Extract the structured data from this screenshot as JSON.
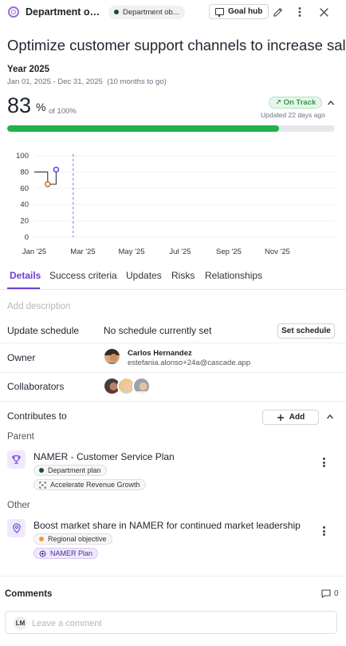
{
  "header": {
    "title": "Department obj...",
    "pill_label": "Department ob...",
    "goal_hub_label": "Goal hub",
    "icons": [
      "target-icon",
      "goal-hub-icon",
      "pencil-icon",
      "more-vertical-icon",
      "close-icon"
    ]
  },
  "objective": {
    "title": "Optimize customer support channels to increase sales",
    "year_label": "Year 2025",
    "date_range": "Jan 01, 2025 - Dec 31, 2025",
    "months_left": "(10 months to go)",
    "progress_value": "83",
    "progress_unit": "%",
    "progress_of": "of 100%",
    "progress_fraction": 0.83,
    "status": "↗ On Track",
    "updated": "Updated 22 days ago",
    "colors": {
      "accent": "#6d3fd6",
      "progress": "#21b04b",
      "status": "#2f9a47"
    }
  },
  "chart_data": {
    "type": "line",
    "y_ticks": [
      "100",
      "80",
      "60",
      "40",
      "20",
      "0"
    ],
    "ylim": [
      0,
      100
    ],
    "x_ticks": [
      "Jan '25",
      "Mar '25",
      "May '25",
      "Jul '25",
      "Sep '25",
      "Nov '25"
    ],
    "target_line": {
      "values": [
        80,
        80,
        65
      ],
      "months": [
        0,
        0.55,
        0.55
      ]
    },
    "actual_line": {
      "values": [
        65,
        65,
        83
      ],
      "months": [
        0.55,
        0.9,
        0.9
      ]
    },
    "points": [
      {
        "month": 0.55,
        "value": 65,
        "color": "#d2691e"
      },
      {
        "month": 0.9,
        "value": 83,
        "color": "#6d3fd6"
      }
    ],
    "today_month": 1.6
  },
  "tabs": [
    {
      "label": "Details",
      "active": true
    },
    {
      "label": "Success criteria",
      "active": false
    },
    {
      "label": "Updates",
      "active": false
    },
    {
      "label": "Risks",
      "active": false
    },
    {
      "label": "Relationships",
      "active": false
    }
  ],
  "details": {
    "add_description": "Add description",
    "update_schedule_label": "Update schedule",
    "update_schedule_value": "No schedule currently set",
    "set_schedule_label": "Set schedule",
    "owner_label": "Owner",
    "owner_name": "Carlos Hernandez",
    "owner_email": "estefania.alonso+24a@cascade.app",
    "collaborators_label": "Collaborators"
  },
  "contributes": {
    "title": "Contributes to",
    "add_label": "Add",
    "parent_label": "Parent",
    "parent": {
      "title": "NAMER - Customer Service Plan",
      "chip_type": "Department plan",
      "chip_goal": "Accelerate Revenue Growth"
    },
    "other_label": "Other",
    "other": {
      "title": "Boost market share in NAMER for continued market leadership",
      "chip_type": "Regional objective",
      "chip_plan": "NAMER Plan"
    }
  },
  "comments": {
    "title": "Comments",
    "count": "0",
    "avatar_initials": "LM",
    "placeholder": "Leave a comment"
  }
}
